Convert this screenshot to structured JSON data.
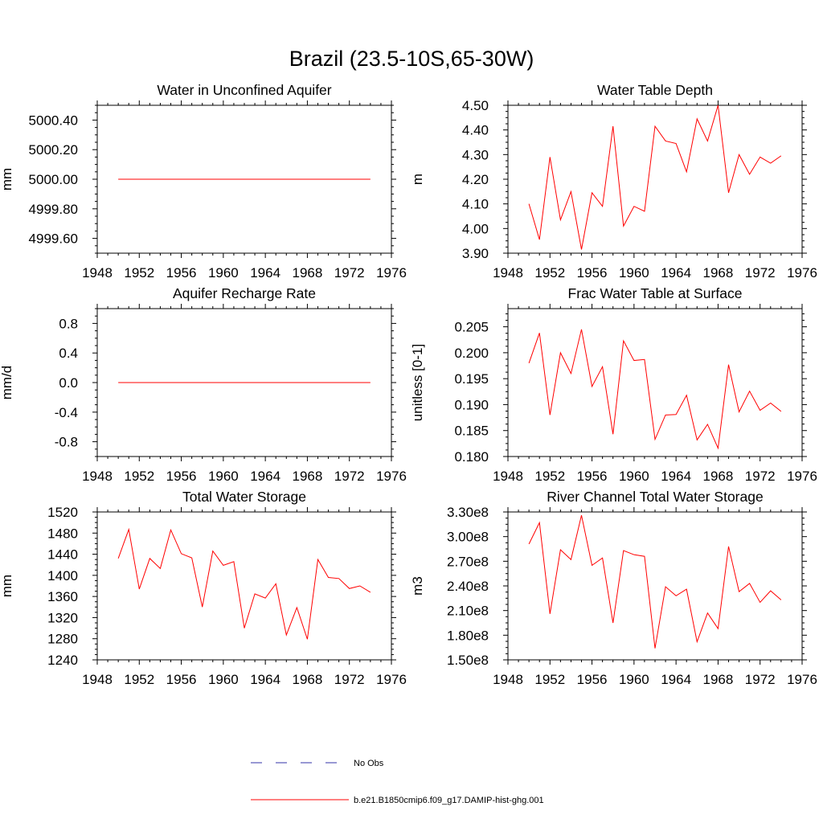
{
  "title": "Brazil (23.5-10S,65-30W)",
  "colors": {
    "model": "#ff0000",
    "obs": "#3333aa",
    "axis": "#000000"
  },
  "legend": {
    "entries": [
      {
        "label": "No Obs",
        "style": "dashed",
        "color": "#3333aa"
      },
      {
        "label": "b.e21.B1850cmip6.f09_g17.DAMIP-hist-ghg.001",
        "style": "solid",
        "color": "#ff0000"
      }
    ]
  },
  "chart_data": [
    {
      "type": "line",
      "title": "Water in Unconfined Aquifer",
      "ylabel": "mm",
      "xlim": [
        1948,
        1976
      ],
      "ylim": [
        4999.5,
        5000.5
      ],
      "xticks": [
        1948,
        1952,
        1956,
        1960,
        1964,
        1968,
        1972,
        1976
      ],
      "yticks": [
        4999.6,
        4999.8,
        5000.0,
        5000.2,
        5000.4
      ],
      "ytick_labels": [
        "4999.60",
        "4999.80",
        "5000.00",
        "5000.20",
        "5000.40"
      ],
      "x": [
        1950,
        1951,
        1952,
        1953,
        1954,
        1955,
        1956,
        1957,
        1958,
        1959,
        1960,
        1961,
        1962,
        1963,
        1964,
        1965,
        1966,
        1967,
        1968,
        1969,
        1970,
        1971,
        1972,
        1973,
        1974
      ],
      "series": [
        {
          "name": "b.e21.B1850cmip6.f09_g17.DAMIP-hist-ghg.001",
          "values": [
            5000,
            5000,
            5000,
            5000,
            5000,
            5000,
            5000,
            5000,
            5000,
            5000,
            5000,
            5000,
            5000,
            5000,
            5000,
            5000,
            5000,
            5000,
            5000,
            5000,
            5000,
            5000,
            5000,
            5000,
            5000
          ]
        }
      ]
    },
    {
      "type": "line",
      "title": "Water Table Depth",
      "ylabel": "m",
      "xlim": [
        1948,
        1976
      ],
      "ylim": [
        3.9,
        4.5
      ],
      "xticks": [
        1948,
        1952,
        1956,
        1960,
        1964,
        1968,
        1972,
        1976
      ],
      "yticks": [
        3.9,
        4.0,
        4.1,
        4.2,
        4.3,
        4.4,
        4.5
      ],
      "ytick_labels": [
        "3.90",
        "4.00",
        "4.10",
        "4.20",
        "4.30",
        "4.40",
        "4.50"
      ],
      "x": [
        1950,
        1951,
        1952,
        1953,
        1954,
        1955,
        1956,
        1957,
        1958,
        1959,
        1960,
        1961,
        1962,
        1963,
        1964,
        1965,
        1966,
        1967,
        1968,
        1969,
        1970,
        1971,
        1972,
        1973,
        1974
      ],
      "series": [
        {
          "name": "b.e21.B1850cmip6.f09_g17.DAMIP-hist-ghg.001",
          "values": [
            4.1,
            3.955,
            4.29,
            4.035,
            4.15,
            3.915,
            4.145,
            4.09,
            4.415,
            4.01,
            4.09,
            4.07,
            4.415,
            4.355,
            4.345,
            4.23,
            4.445,
            4.355,
            4.5,
            4.145,
            4.3,
            4.22,
            4.29,
            4.265,
            4.295
          ]
        }
      ]
    },
    {
      "type": "line",
      "title": "Aquifer Recharge Rate",
      "ylabel": "mm/d",
      "xlim": [
        1948,
        1976
      ],
      "ylim": [
        -1.0,
        1.0
      ],
      "xticks": [
        1948,
        1952,
        1956,
        1960,
        1964,
        1968,
        1972,
        1976
      ],
      "yticks": [
        -0.8,
        -0.4,
        0.0,
        0.4,
        0.8
      ],
      "ytick_labels": [
        "-0.8",
        "-0.4",
        "0.0",
        "0.4",
        "0.8"
      ],
      "x": [
        1950,
        1951,
        1952,
        1953,
        1954,
        1955,
        1956,
        1957,
        1958,
        1959,
        1960,
        1961,
        1962,
        1963,
        1964,
        1965,
        1966,
        1967,
        1968,
        1969,
        1970,
        1971,
        1972,
        1973,
        1974
      ],
      "series": [
        {
          "name": "b.e21.B1850cmip6.f09_g17.DAMIP-hist-ghg.001",
          "values": [
            0,
            0,
            0,
            0,
            0,
            0,
            0,
            0,
            0,
            0,
            0,
            0,
            0,
            0,
            0,
            0,
            0,
            0,
            0,
            0,
            0,
            0,
            0,
            0,
            0
          ]
        }
      ]
    },
    {
      "type": "line",
      "title": "Frac Water Table at Surface",
      "ylabel": "unitless [0-1]",
      "xlim": [
        1948,
        1976
      ],
      "ylim": [
        0.18,
        0.2085
      ],
      "xticks": [
        1948,
        1952,
        1956,
        1960,
        1964,
        1968,
        1972,
        1976
      ],
      "yticks": [
        0.18,
        0.185,
        0.19,
        0.195,
        0.2,
        0.205
      ],
      "ytick_labels": [
        "0.180",
        "0.185",
        "0.190",
        "0.195",
        "0.200",
        "0.205"
      ],
      "x": [
        1950,
        1951,
        1952,
        1953,
        1954,
        1955,
        1956,
        1957,
        1958,
        1959,
        1960,
        1961,
        1962,
        1963,
        1964,
        1965,
        1966,
        1967,
        1968,
        1969,
        1970,
        1971,
        1972,
        1973,
        1974
      ],
      "series": [
        {
          "name": "b.e21.B1850cmip6.f09_g17.DAMIP-hist-ghg.001",
          "values": [
            0.198,
            0.2038,
            0.188,
            0.2,
            0.196,
            0.2045,
            0.1935,
            0.1973,
            0.1843,
            0.2023,
            0.1985,
            0.1987,
            0.1833,
            0.188,
            0.1881,
            0.1918,
            0.1832,
            0.1862,
            0.1816,
            0.1977,
            0.1886,
            0.1926,
            0.1889,
            0.1903,
            0.1887
          ]
        }
      ]
    },
    {
      "type": "line",
      "title": "Total Water Storage",
      "ylabel": "mm",
      "xlim": [
        1948,
        1976
      ],
      "ylim": [
        1240,
        1520
      ],
      "xticks": [
        1948,
        1952,
        1956,
        1960,
        1964,
        1968,
        1972,
        1976
      ],
      "yticks": [
        1240,
        1280,
        1320,
        1360,
        1400,
        1440,
        1480,
        1520
      ],
      "ytick_labels": [
        "1240",
        "1280",
        "1320",
        "1360",
        "1400",
        "1440",
        "1480",
        "1520"
      ],
      "x": [
        1950,
        1951,
        1952,
        1953,
        1954,
        1955,
        1956,
        1957,
        1958,
        1959,
        1960,
        1961,
        1962,
        1963,
        1964,
        1965,
        1966,
        1967,
        1968,
        1969,
        1970,
        1971,
        1972,
        1973,
        1974
      ],
      "series": [
        {
          "name": "b.e21.B1850cmip6.f09_g17.DAMIP-hist-ghg.001",
          "values": [
            1432,
            1487,
            1374,
            1432,
            1413,
            1486,
            1441,
            1433,
            1340,
            1446,
            1419,
            1426,
            1300,
            1365,
            1357,
            1384,
            1287,
            1339,
            1279,
            1430,
            1396,
            1394,
            1375,
            1380,
            1368
          ]
        }
      ]
    },
    {
      "type": "line",
      "title": "River Channel Total Water Storage",
      "ylabel": "m3",
      "xlim": [
        1948,
        1976
      ],
      "ylim": [
        150000000,
        330000000
      ],
      "xticks": [
        1948,
        1952,
        1956,
        1960,
        1964,
        1968,
        1972,
        1976
      ],
      "yticks": [
        150000000,
        180000000,
        210000000,
        240000000,
        270000000,
        300000000,
        330000000
      ],
      "ytick_labels": [
        "1.50e8",
        "1.80e8",
        "2.10e8",
        "2.40e8",
        "2.70e8",
        "3.00e8",
        "3.30e8"
      ],
      "x": [
        1950,
        1951,
        1952,
        1953,
        1954,
        1955,
        1956,
        1957,
        1958,
        1959,
        1960,
        1961,
        1962,
        1963,
        1964,
        1965,
        1966,
        1967,
        1968,
        1969,
        1970,
        1971,
        1972,
        1973,
        1974
      ],
      "series": [
        {
          "name": "b.e21.B1850cmip6.f09_g17.DAMIP-hist-ghg.001",
          "values": [
            291000000,
            317000000,
            206000000,
            284000000,
            272000000,
            326000000,
            265000000,
            274000000,
            195000000,
            283000000,
            278000000,
            276000000,
            164000000,
            239000000,
            228000000,
            236000000,
            172000000,
            207000000,
            188000000,
            288000000,
            233000000,
            243000000,
            220000000,
            234000000,
            223000000
          ]
        }
      ]
    }
  ]
}
